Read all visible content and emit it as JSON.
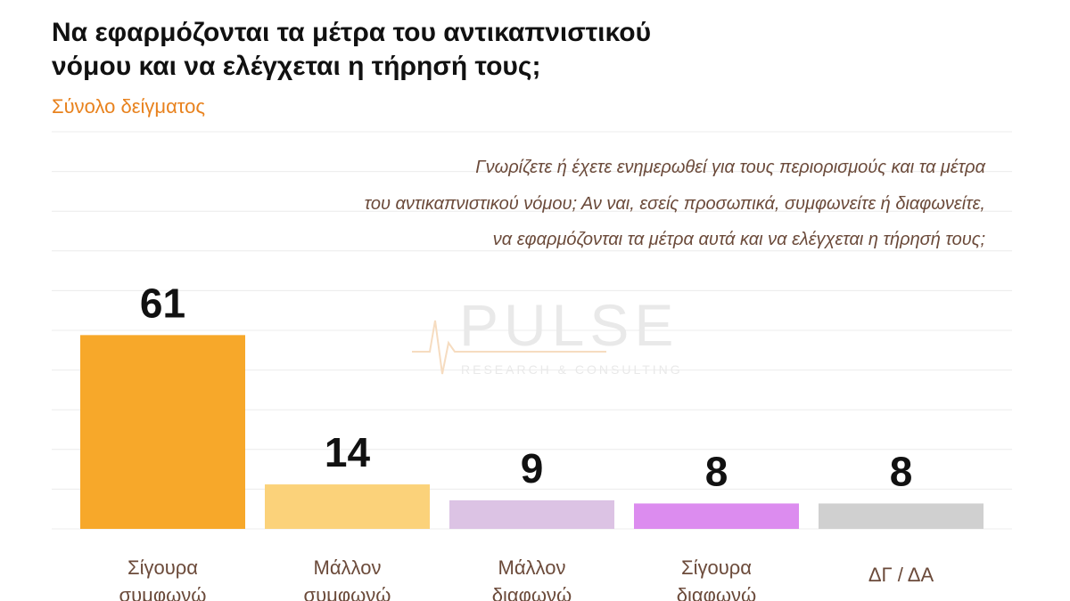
{
  "title": [
    "Να εφαρμόζονται τα μέτρα του αντικαπνιστικού",
    "νόμου και να ελέγχεται η τήρησή τους;"
  ],
  "subtitle": "Σύνολο δείγματος",
  "watermark": {
    "brand": "PULSE",
    "tagline": "RESEARCH & CONSULTING"
  },
  "chart_data": {
    "type": "bar",
    "note": [
      "Γνωρίζετε ή έχετε ενημερωθεί για τους περιορισμούς και τα μέτρα",
      "του αντικαπνιστικού νόμου; Αν ναι, εσείς προσωπικά, συμφωνείτε ή διαφωνείτε,",
      "να εφαρμόζονται τα μέτρα αυτά και να ελέγχεται η τήρησή τους;"
    ],
    "categories": [
      [
        "Σίγουρα",
        "συμφωνώ"
      ],
      [
        "Μάλλον",
        "συμφωνώ"
      ],
      [
        "Μάλλον",
        "διαφωνώ"
      ],
      [
        "Σίγουρα",
        "διαφωνώ"
      ],
      [
        "ΔΓ / ΔΑ"
      ]
    ],
    "values": [
      61,
      14,
      9,
      8,
      8
    ],
    "colors": [
      "#f7a82a",
      "#fbd27a",
      "#dcc3e4",
      "#dc8cef",
      "#d0d0d0"
    ],
    "ylim": [
      0,
      125
    ]
  }
}
